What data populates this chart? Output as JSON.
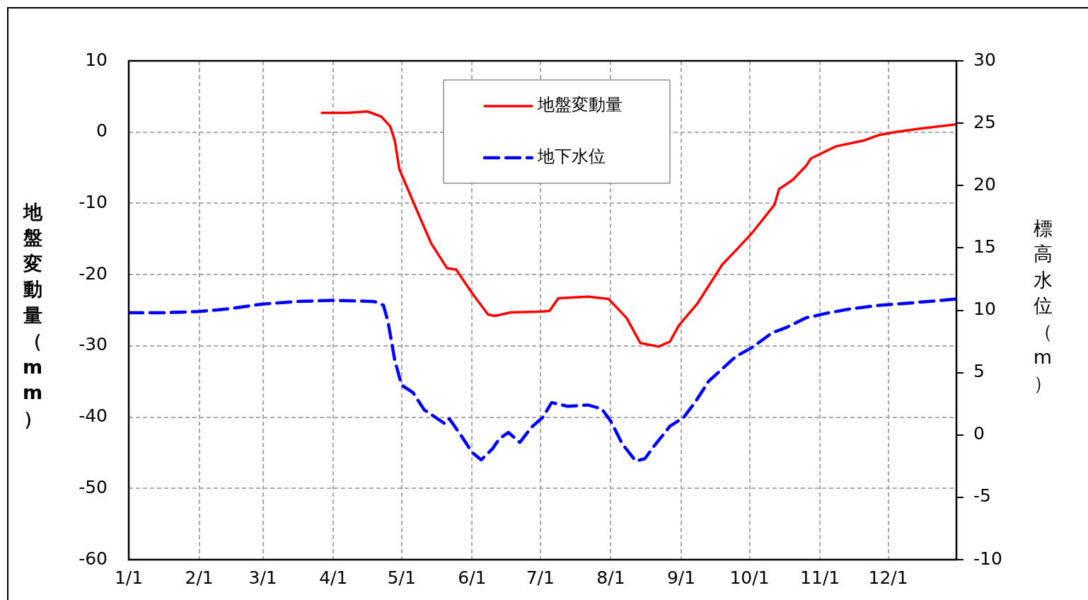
{
  "chart_data": {
    "type": "line",
    "ylabel": "地盤変動量（mm）",
    "y2label": "標高水位（m）",
    "xlim": [
      "--01-01",
      "--12-31"
    ],
    "xticks": [
      {
        "value": "--01-01",
        "label": "1/1"
      },
      {
        "value": "--02-01",
        "label": "2/1"
      },
      {
        "value": "--03-01",
        "label": "3/1"
      },
      {
        "value": "--04-01",
        "label": "4/1"
      },
      {
        "value": "--05-01",
        "label": "5/1"
      },
      {
        "value": "--06-01",
        "label": "6/1"
      },
      {
        "value": "--07-01",
        "label": "7/1"
      },
      {
        "value": "--08-01",
        "label": "8/1"
      },
      {
        "value": "--09-01",
        "label": "9/1"
      },
      {
        "value": "--10-01",
        "label": "10/1"
      },
      {
        "value": "--11-01",
        "label": "11/1"
      },
      {
        "value": "--12-01",
        "label": "12/1"
      }
    ],
    "ylim": [
      -60,
      10
    ],
    "yticks": [
      -60,
      -50,
      -40,
      -30,
      -20,
      -10,
      0,
      10
    ],
    "y2lim": [
      -10,
      30
    ],
    "y2ticks": [
      -10,
      -5,
      0,
      5,
      10,
      15,
      20,
      25,
      30
    ],
    "grid": true,
    "legend": "top",
    "marker": "none",
    "series": [
      {
        "name": "地盤変動量",
        "color": "#ff0000",
        "line_style": "solid",
        "x": [
          "--03-27",
          "--04-07",
          "--04-16",
          "--04-22",
          "--04-26",
          "--04-28",
          "--04-30",
          "--05-02",
          "--05-08",
          "--05-14",
          "--05-21",
          "--05-25",
          "--06-01",
          "--06-08",
          "--06-11",
          "--06-18",
          "--06-30",
          "--07-05",
          "--07-09",
          "--07-22",
          "--07-31",
          "--08-08",
          "--08-14",
          "--08-22",
          "--08-27",
          "--08-31",
          "--09-08",
          "--09-13",
          "--09-19",
          "--09-25",
          "--10-02",
          "--10-12",
          "--10-14",
          "--10-20",
          "--10-26",
          "--10-28",
          "--11-08",
          "--11-20",
          "--11-27",
          "--12-04",
          "--12-15",
          "--12-31"
        ],
        "values": [
          2.7,
          2.7,
          2.9,
          2.2,
          0.8,
          -1.2,
          -5.2,
          -6.7,
          -11.2,
          -15.6,
          -19.1,
          -19.3,
          -22.6,
          -25.6,
          -25.8,
          -25.3,
          -25.2,
          -25.1,
          -23.3,
          -23.1,
          -23.4,
          -26.1,
          -29.6,
          -30.1,
          -29.4,
          -27.1,
          -24.1,
          -21.6,
          -18.6,
          -16.6,
          -14.2,
          -10.2,
          -8.0,
          -6.7,
          -4.7,
          -3.7,
          -2.0,
          -1.2,
          -0.4,
          0.0,
          0.5,
          1.1
        ]
      },
      {
        "name": "地下水位",
        "color": "#0000ff",
        "line_style": "dashed",
        "axis": "y2",
        "x": [
          "--01-01",
          "--01-16",
          "--02-01",
          "--02-13",
          "--03-01",
          "--03-16",
          "--04-01",
          "--04-19",
          "--04-23",
          "--04-25",
          "--04-28",
          "--05-01",
          "--05-06",
          "--05-11",
          "--05-16",
          "--05-20",
          "--05-22",
          "--05-27",
          "--06-01",
          "--06-05",
          "--06-10",
          "--06-13",
          "--06-17",
          "--06-22",
          "--06-27",
          "--07-02",
          "--07-06",
          "--07-13",
          "--07-22",
          "--07-28",
          "--08-01",
          "--08-06",
          "--08-12",
          "--08-16",
          "--08-20",
          "--08-27",
          "--09-02",
          "--09-07",
          "--09-13",
          "--09-19",
          "--09-25",
          "--10-02",
          "--10-11",
          "--10-17",
          "--10-26",
          "--11-05",
          "--11-14",
          "--11-27",
          "--12-12",
          "--12-31"
        ],
        "values": [
          9.8,
          9.8,
          9.9,
          10.1,
          10.5,
          10.7,
          10.8,
          10.7,
          10.4,
          9.1,
          6.0,
          4.0,
          3.4,
          2.0,
          1.4,
          0.9,
          1.3,
          0.0,
          -1.4,
          -2.0,
          -1.1,
          -0.3,
          0.2,
          -0.6,
          0.6,
          1.4,
          2.6,
          2.3,
          2.4,
          2.1,
          1.1,
          -0.7,
          -2.1,
          -1.9,
          -0.9,
          0.7,
          1.4,
          2.6,
          4.3,
          5.3,
          6.3,
          7.0,
          8.2,
          8.6,
          9.4,
          9.8,
          10.1,
          10.4,
          10.6,
          10.9
        ]
      }
    ]
  }
}
